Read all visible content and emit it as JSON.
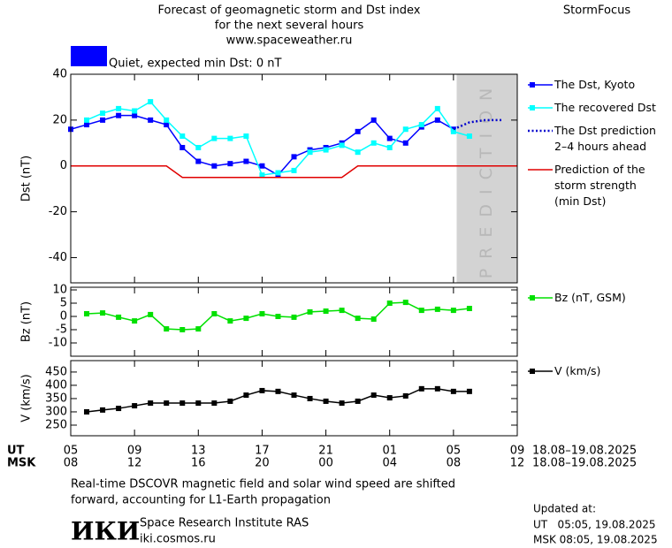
{
  "header": {
    "title_lines": [
      "Forecast of geomagnetic storm and Dst index",
      "for the next several hours",
      "www.spaceweather.ru"
    ],
    "brand": "StormFocus",
    "status": "Quiet, expected min Dst: 0 nT",
    "status_color": "#0000ff"
  },
  "chart_data": [
    {
      "type": "line",
      "axis_label": "Dst (nT)",
      "ylim": [
        -51,
        40
      ],
      "yticks": [
        -40,
        -20,
        0,
        20,
        40
      ],
      "prediction_zone": {
        "x": [
          24.2,
          28
        ],
        "label": "PREDICTION",
        "color": "#d3d3d3"
      },
      "series": [
        {
          "name": "The Dst, Kyoto",
          "color": "#0000ff",
          "marker": "square",
          "x": [
            0,
            1,
            2,
            3,
            4,
            5,
            6,
            7,
            8,
            9,
            10,
            11,
            12,
            13,
            14,
            15,
            16,
            17,
            18,
            19,
            20,
            21,
            22,
            23,
            24
          ],
          "values": [
            16,
            18,
            20,
            22,
            22,
            20,
            18,
            8,
            2,
            0,
            1,
            2,
            0,
            -4,
            4,
            7,
            8,
            10,
            15,
            20,
            12,
            10,
            17,
            20,
            16
          ]
        },
        {
          "name": "The recovered Dst",
          "color": "#00ffff",
          "marker": "square",
          "x": [
            1,
            2,
            3,
            4,
            5,
            6,
            7,
            8,
            9,
            10,
            11,
            12,
            13,
            14,
            15,
            16,
            17,
            18,
            19,
            20,
            21,
            22,
            23,
            24,
            25
          ],
          "values": [
            20,
            23,
            25,
            24,
            28,
            20,
            13,
            8,
            12,
            12,
            13,
            -4,
            -3,
            -2,
            6,
            7,
            9,
            6,
            10,
            8,
            16,
            18,
            25,
            15,
            13
          ]
        },
        {
          "name": "The Dst prediction\n2–4 hours ahead",
          "color": "#0000cc",
          "line_style": "dotted",
          "x": [
            24,
            25,
            26,
            27
          ],
          "values": [
            16,
            19,
            20,
            20
          ]
        },
        {
          "name": "Prediction of the\nstorm strength\n(min Dst)",
          "color": "#e00000",
          "x": [
            0,
            6,
            7,
            17,
            18,
            28
          ],
          "values": [
            0,
            0,
            -5,
            -5,
            0,
            0
          ]
        }
      ]
    },
    {
      "type": "line",
      "axis_label": "Bz (nT)",
      "ylim": [
        -15,
        11
      ],
      "yticks": [
        -10,
        -5,
        0,
        5,
        10
      ],
      "series": [
        {
          "name": "Bz (nT, GSM)",
          "color": "#00e000",
          "marker": "square",
          "x": [
            1,
            2,
            3,
            4,
            5,
            6,
            7,
            8,
            9,
            10,
            11,
            12,
            13,
            14,
            15,
            16,
            17,
            18,
            19,
            20,
            21,
            22,
            23,
            24,
            25
          ],
          "values": [
            1,
            1.3,
            -0.3,
            -1.7,
            0.7,
            -4.7,
            -5,
            -4.7,
            1,
            -1.7,
            -0.7,
            1,
            0,
            -0.3,
            1.7,
            2,
            2.3,
            -0.7,
            -1,
            5,
            5.3,
            2.3,
            2.7,
            2.3,
            3
          ]
        }
      ]
    },
    {
      "type": "line",
      "axis_label": "V (km/s)",
      "ylim": [
        210,
        493
      ],
      "yticks": [
        250,
        300,
        350,
        400,
        450
      ],
      "xlim": [
        0,
        28
      ],
      "xticks": [
        {
          "value": 0,
          "label": "05"
        },
        {
          "value": 4,
          "label": "09"
        },
        {
          "value": 8,
          "label": "13"
        },
        {
          "value": 12,
          "label": "17"
        },
        {
          "value": 16,
          "label": "21"
        },
        {
          "value": 20,
          "label": "01"
        },
        {
          "value": 24,
          "label": "05"
        },
        {
          "value": 28,
          "label": "09"
        }
      ],
      "xticks_msk": [
        {
          "value": 0,
          "label": "08"
        },
        {
          "value": 4,
          "label": "12"
        },
        {
          "value": 8,
          "label": "16"
        },
        {
          "value": 12,
          "label": "20"
        },
        {
          "value": 16,
          "label": "00"
        },
        {
          "value": 20,
          "label": "04"
        },
        {
          "value": 24,
          "label": "08"
        },
        {
          "value": 28,
          "label": "12"
        }
      ],
      "x_row_labels": [
        "UT",
        "MSK"
      ],
      "date_ranges": [
        "18.08–19.08.2025",
        "18.08–19.08.2025"
      ],
      "series": [
        {
          "name": "V (km/s)",
          "color": "#000000",
          "marker": "square",
          "x": [
            1,
            2,
            3,
            4,
            5,
            6,
            7,
            8,
            9,
            10,
            11,
            12,
            13,
            14,
            15,
            16,
            17,
            18,
            19,
            20,
            21,
            22,
            23,
            24,
            25
          ],
          "values": [
            300,
            307,
            313,
            323,
            333,
            333,
            333,
            333,
            333,
            340,
            363,
            380,
            377,
            363,
            350,
            340,
            333,
            340,
            363,
            353,
            360,
            387,
            387,
            377,
            377
          ]
        }
      ]
    }
  ],
  "footer": {
    "note_lines": [
      "Real-time DSCOVR magnetic field and solar wind speed are shifted",
      "forward, accounting for L1-Earth propagation"
    ],
    "logo": "ИКИ",
    "institute": "Space Research Institute RAS",
    "website": "iki.cosmos.ru",
    "updated_label": "Updated at:",
    "updated_lines": [
      "UT   05:05, 19.08.2025",
      "MSK 08:05, 19.08.2025"
    ]
  }
}
